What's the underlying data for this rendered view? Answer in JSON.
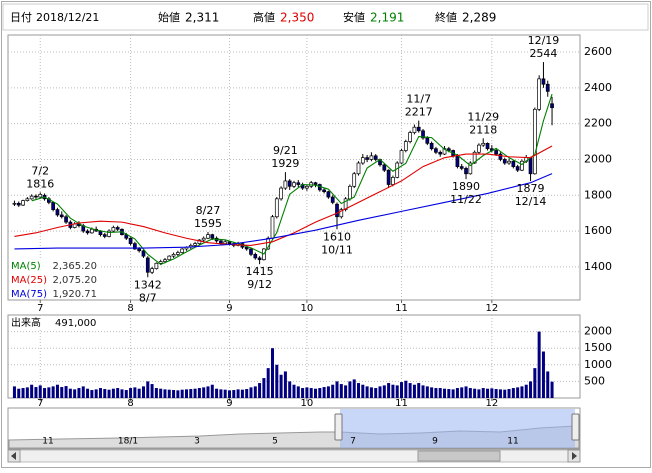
{
  "header": {
    "date_label": "日付",
    "date": "2018/12/21",
    "fields": [
      {
        "label": "始値",
        "value_label": "2,311",
        "color": "#000000"
      },
      {
        "label": "高値",
        "value_label": "2,350",
        "color": "#e00000"
      },
      {
        "label": "安値",
        "value_label": "2,191",
        "color": "#008000"
      },
      {
        "label": "終値",
        "value_label": "2,289",
        "color": "#000000"
      }
    ]
  },
  "chart_data": [
    {
      "type": "candlestick",
      "up_color": "#ffffff",
      "down_color": "#000080",
      "wick_color": "#000000",
      "xlim": [
        -1.5,
        131.5
      ],
      "xticks": [
        {
          "value": 6,
          "label": "7"
        },
        {
          "value": 27,
          "label": "8"
        },
        {
          "value": 50,
          "label": "9"
        },
        {
          "value": 68,
          "label": "10"
        },
        {
          "value": 90,
          "label": "11"
        },
        {
          "value": 111,
          "label": "12"
        }
      ],
      "ylim": [
        1215,
        2695
      ],
      "yticks": [
        1400,
        1600,
        1800,
        2000,
        2200,
        2400,
        2600
      ],
      "grid": true,
      "ohlc": [
        [
          1750,
          1770,
          1740,
          1755
        ],
        [
          1755,
          1765,
          1735,
          1745
        ],
        [
          1745,
          1775,
          1740,
          1770
        ],
        [
          1770,
          1790,
          1765,
          1780
        ],
        [
          1780,
          1805,
          1775,
          1795
        ],
        [
          1795,
          1805,
          1780,
          1790
        ],
        [
          1790,
          1816,
          1785,
          1805
        ],
        [
          1800,
          1810,
          1770,
          1780
        ],
        [
          1780,
          1790,
          1750,
          1760
        ],
        [
          1760,
          1765,
          1710,
          1720
        ],
        [
          1720,
          1730,
          1680,
          1690
        ],
        [
          1690,
          1710,
          1670,
          1680
        ],
        [
          1680,
          1690,
          1640,
          1650
        ],
        [
          1650,
          1660,
          1610,
          1620
        ],
        [
          1620,
          1650,
          1615,
          1640
        ],
        [
          1640,
          1655,
          1620,
          1630
        ],
        [
          1630,
          1640,
          1590,
          1600
        ],
        [
          1600,
          1610,
          1580,
          1590
        ],
        [
          1590,
          1620,
          1585,
          1610
        ],
        [
          1610,
          1625,
          1595,
          1600
        ],
        [
          1600,
          1605,
          1570,
          1580
        ],
        [
          1580,
          1590,
          1560,
          1570
        ],
        [
          1570,
          1610,
          1565,
          1600
        ],
        [
          1600,
          1630,
          1595,
          1620
        ],
        [
          1620,
          1630,
          1600,
          1610
        ],
        [
          1610,
          1615,
          1575,
          1580
        ],
        [
          1580,
          1590,
          1550,
          1560
        ],
        [
          1560,
          1565,
          1520,
          1530
        ],
        [
          1530,
          1540,
          1495,
          1500
        ],
        [
          1500,
          1510,
          1480,
          1490
        ],
        [
          1490,
          1495,
          1450,
          1460
        ],
        [
          1450,
          1460,
          1342,
          1370
        ],
        [
          1370,
          1400,
          1360,
          1390
        ],
        [
          1390,
          1425,
          1385,
          1420
        ],
        [
          1420,
          1440,
          1410,
          1430
        ],
        [
          1430,
          1450,
          1420,
          1440
        ],
        [
          1440,
          1465,
          1435,
          1460
        ],
        [
          1460,
          1480,
          1450,
          1470
        ],
        [
          1470,
          1490,
          1460,
          1480
        ],
        [
          1480,
          1505,
          1475,
          1500
        ],
        [
          1500,
          1515,
          1490,
          1510
        ],
        [
          1510,
          1530,
          1500,
          1520
        ],
        [
          1520,
          1540,
          1510,
          1530
        ],
        [
          1530,
          1555,
          1525,
          1550
        ],
        [
          1550,
          1570,
          1540,
          1560
        ],
        [
          1560,
          1595,
          1555,
          1580
        ],
        [
          1580,
          1585,
          1550,
          1560
        ],
        [
          1560,
          1570,
          1535,
          1545
        ],
        [
          1545,
          1555,
          1520,
          1530
        ],
        [
          1530,
          1550,
          1525,
          1540
        ],
        [
          1540,
          1545,
          1520,
          1530
        ],
        [
          1530,
          1540,
          1510,
          1520
        ],
        [
          1520,
          1540,
          1515,
          1530
        ],
        [
          1530,
          1535,
          1500,
          1510
        ],
        [
          1510,
          1520,
          1490,
          1500
        ],
        [
          1500,
          1505,
          1460,
          1470
        ],
        [
          1470,
          1480,
          1440,
          1450
        ],
        [
          1450,
          1460,
          1415,
          1440
        ],
        [
          1440,
          1505,
          1435,
          1500
        ],
        [
          1500,
          1570,
          1495,
          1560
        ],
        [
          1560,
          1690,
          1555,
          1680
        ],
        [
          1680,
          1790,
          1670,
          1780
        ],
        [
          1780,
          1850,
          1770,
          1840
        ],
        [
          1840,
          1929,
          1830,
          1880
        ],
        [
          1880,
          1890,
          1830,
          1850
        ],
        [
          1850,
          1880,
          1840,
          1870
        ],
        [
          1870,
          1885,
          1845,
          1860
        ],
        [
          1860,
          1870,
          1830,
          1840
        ],
        [
          1840,
          1860,
          1825,
          1850
        ],
        [
          1850,
          1880,
          1840,
          1870
        ],
        [
          1870,
          1875,
          1845,
          1860
        ],
        [
          1860,
          1865,
          1820,
          1830
        ],
        [
          1830,
          1840,
          1810,
          1820
        ],
        [
          1820,
          1825,
          1780,
          1790
        ],
        [
          1790,
          1800,
          1750,
          1760
        ],
        [
          1750,
          1760,
          1610,
          1680
        ],
        [
          1680,
          1730,
          1670,
          1720
        ],
        [
          1720,
          1790,
          1710,
          1780
        ],
        [
          1780,
          1860,
          1770,
          1850
        ],
        [
          1850,
          1930,
          1840,
          1920
        ],
        [
          1920,
          1990,
          1910,
          1980
        ],
        [
          1980,
          2030,
          1970,
          2010
        ],
        [
          2010,
          2025,
          1985,
          2000
        ],
        [
          2000,
          2040,
          1990,
          2020
        ],
        [
          2020,
          2030,
          1990,
          2000
        ],
        [
          2000,
          2005,
          1960,
          1970
        ],
        [
          1970,
          1980,
          1930,
          1940
        ],
        [
          1940,
          1945,
          1840,
          1860
        ],
        [
          1860,
          1910,
          1850,
          1900
        ],
        [
          1900,
          1990,
          1895,
          1980
        ],
        [
          1980,
          2060,
          1975,
          2050
        ],
        [
          2050,
          2110,
          2040,
          2100
        ],
        [
          2100,
          2160,
          2090,
          2150
        ],
        [
          2150,
          2195,
          2140,
          2180
        ],
        [
          2180,
          2217,
          2150,
          2160
        ],
        [
          2160,
          2170,
          2110,
          2120
        ],
        [
          2120,
          2130,
          2080,
          2090
        ],
        [
          2090,
          2100,
          2050,
          2060
        ],
        [
          2060,
          2070,
          2030,
          2040
        ],
        [
          2040,
          2050,
          2015,
          2030
        ],
        [
          2030,
          2075,
          2025,
          2060
        ],
        [
          2060,
          2070,
          2040,
          2050
        ],
        [
          2050,
          2055,
          2010,
          2020
        ],
        [
          2020,
          2030,
          1950,
          1960
        ],
        [
          1960,
          1975,
          1940,
          1950
        ],
        [
          1950,
          1960,
          1890,
          1920
        ],
        [
          1920,
          1990,
          1915,
          1980
        ],
        [
          1980,
          2050,
          1975,
          2040
        ],
        [
          2040,
          2090,
          2030,
          2080
        ],
        [
          2080,
          2118,
          2070,
          2090
        ],
        [
          2090,
          2095,
          2050,
          2060
        ],
        [
          2060,
          2080,
          2040,
          2050
        ],
        [
          2050,
          2060,
          2020,
          2030
        ],
        [
          2030,
          2040,
          1990,
          2000
        ],
        [
          2000,
          2010,
          1970,
          1980
        ],
        [
          1980,
          2005,
          1970,
          1990
        ],
        [
          1990,
          1995,
          1950,
          1960
        ],
        [
          1960,
          1970,
          1930,
          1940
        ],
        [
          1940,
          2000,
          1935,
          1990
        ],
        [
          1990,
          2025,
          1980,
          2010
        ],
        [
          2010,
          2015,
          1879,
          1920
        ],
        [
          1920,
          2290,
          1915,
          2280
        ],
        [
          2280,
          2470,
          2270,
          2450
        ],
        [
          2450,
          2544,
          2400,
          2420
        ],
        [
          2420,
          2440,
          2350,
          2380
        ],
        [
          2311,
          2350,
          2191,
          2289
        ]
      ],
      "series": [
        {
          "name": "MA(5)",
          "value_label": "2,365.20",
          "color": "#008000",
          "x": [
            4,
            7,
            10,
            13,
            16,
            19,
            22,
            25,
            28,
            31,
            34,
            37,
            40,
            43,
            46,
            49,
            52,
            55,
            58,
            61,
            64,
            67,
            70,
            73,
            76,
            79,
            82,
            85,
            88,
            91,
            94,
            97,
            100,
            103,
            106,
            109,
            112,
            115,
            118,
            121,
            123,
            125
          ],
          "values": [
            1769,
            1790,
            1751,
            1672,
            1628,
            1606,
            1592,
            1596,
            1556,
            1470,
            1414,
            1444,
            1484,
            1522,
            1556,
            1551,
            1530,
            1506,
            1472,
            1592,
            1806,
            1860,
            1856,
            1834,
            1754,
            1790,
            1952,
            2000,
            1934,
            1978,
            2128,
            2122,
            2056,
            2024,
            1966,
            2022,
            2062,
            2010,
            1972,
            2028,
            2216,
            2365.2
          ]
        },
        {
          "name": "MA(25)",
          "value_label": "2,075.20",
          "color": "#e00000",
          "x": [
            0,
            5,
            10,
            15,
            20,
            25,
            30,
            35,
            40,
            45,
            50,
            55,
            60,
            65,
            70,
            75,
            80,
            85,
            90,
            95,
            100,
            105,
            110,
            115,
            120,
            125
          ],
          "values": [
            1570,
            1590,
            1620,
            1645,
            1655,
            1650,
            1625,
            1590,
            1560,
            1535,
            1525,
            1520,
            1540,
            1590,
            1650,
            1700,
            1760,
            1820,
            1880,
            1960,
            2010,
            2030,
            2030,
            2015,
            2010,
            2075.2
          ]
        },
        {
          "name": "MA(75)",
          "value_label": "1,920.71",
          "color": "#0000e0",
          "x": [
            0,
            10,
            20,
            30,
            40,
            50,
            60,
            70,
            80,
            90,
            100,
            110,
            120,
            125
          ],
          "values": [
            1500,
            1505,
            1505,
            1505,
            1510,
            1525,
            1560,
            1605,
            1660,
            1710,
            1760,
            1810,
            1870,
            1920.71
          ]
        }
      ],
      "annotations": [
        {
          "label": "7/2",
          "value": 1816,
          "x": 6
        },
        {
          "label": "8/7",
          "value": 1342,
          "x": 31
        },
        {
          "label": "8/27",
          "value": 1595,
          "x": 45
        },
        {
          "label": "9/12",
          "value": 1415,
          "x": 57
        },
        {
          "label": "9/21",
          "value": 1929,
          "x": 63
        },
        {
          "label": "10/11",
          "value": 1610,
          "x": 75
        },
        {
          "label": "11/7",
          "value": 2217,
          "x": 94
        },
        {
          "label": "11/22",
          "value": 1890,
          "x": 105
        },
        {
          "label": "11/29",
          "value": 2118,
          "x": 109
        },
        {
          "label": "12/14",
          "value": 1879,
          "x": 120
        },
        {
          "label": "12/19",
          "value": 2544,
          "x": 123
        }
      ]
    },
    {
      "type": "bar",
      "title": "出来高",
      "value_label": "491,000",
      "color": "#000080",
      "xlim": [
        -1.5,
        131.5
      ],
      "xticks": [
        {
          "value": 6,
          "label": "7"
        },
        {
          "value": 27,
          "label": "8"
        },
        {
          "value": 50,
          "label": "9"
        },
        {
          "value": 68,
          "label": "10"
        },
        {
          "value": 90,
          "label": "11"
        },
        {
          "value": 111,
          "label": "12"
        }
      ],
      "ylim": [
        0,
        2500
      ],
      "yticks": [
        500,
        1000,
        1500,
        2000
      ],
      "grid": true,
      "values": [
        350,
        280,
        300,
        320,
        400,
        330,
        380,
        300,
        320,
        350,
        400,
        330,
        360,
        280,
        260,
        300,
        350,
        280,
        240,
        260,
        300,
        270,
        250,
        280,
        300,
        260,
        240,
        300,
        320,
        280,
        350,
        500,
        420,
        300,
        280,
        260,
        250,
        240,
        230,
        250,
        260,
        270,
        280,
        300,
        320,
        350,
        400,
        280,
        260,
        250,
        230,
        240,
        260,
        250,
        270,
        320,
        350,
        450,
        600,
        900,
        1500,
        1000,
        700,
        800,
        500,
        400,
        350,
        300,
        320,
        300,
        280,
        300,
        330,
        350,
        400,
        500,
        420,
        380,
        500,
        560,
        450,
        400,
        350,
        320,
        300,
        350,
        380,
        450,
        400,
        380,
        480,
        520,
        450,
        400,
        450,
        380,
        350,
        320,
        300,
        300,
        280,
        270,
        260,
        300,
        320,
        350,
        300,
        280,
        260,
        300,
        280,
        290,
        270,
        260,
        250,
        270,
        300,
        320,
        350,
        400,
        500,
        900,
        2000,
        1400,
        800,
        491
      ]
    }
  ],
  "navigator": {
    "labels": [
      "11",
      "18/1",
      "3",
      "5",
      "7",
      "9",
      "11"
    ]
  }
}
